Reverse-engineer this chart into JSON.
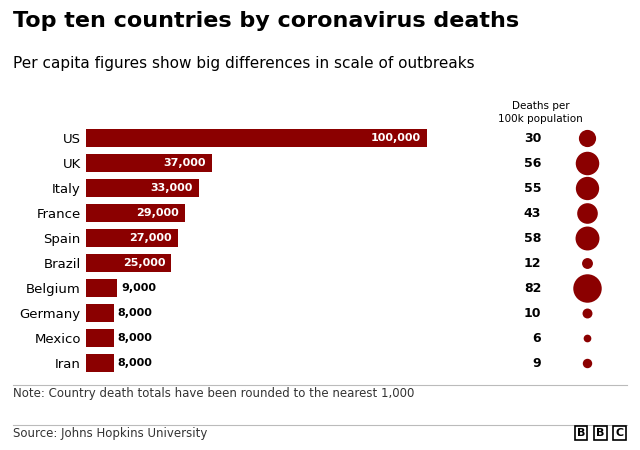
{
  "title": "Top ten countries by coronavirus deaths",
  "subtitle": "Per capita figures show big differences in scale of outbreaks",
  "note": "Note: Country death totals have been rounded to the nearest 1,000",
  "source": "Source: Johns Hopkins University",
  "bbc_label": "BBC",
  "bubble_header": "Deaths per\n100k population",
  "countries": [
    "US",
    "UK",
    "Italy",
    "France",
    "Spain",
    "Brazil",
    "Belgium",
    "Germany",
    "Mexico",
    "Iran"
  ],
  "deaths": [
    100000,
    37000,
    33000,
    29000,
    27000,
    25000,
    9000,
    8000,
    8000,
    8000
  ],
  "death_labels": [
    "100,000",
    "37,000",
    "33,000",
    "29,000",
    "27,000",
    "25,000",
    "9,000",
    "8,000",
    "8,000",
    "8,000"
  ],
  "per_capita": [
    30,
    56,
    55,
    43,
    58,
    12,
    82,
    10,
    6,
    9
  ],
  "bar_color": "#8B0000",
  "background_color": "#ffffff",
  "text_color": "#000000",
  "title_fontsize": 16,
  "subtitle_fontsize": 11,
  "note_fontsize": 8.5,
  "xlim": [
    0,
    110000
  ],
  "inside_label_threshold": 15000
}
